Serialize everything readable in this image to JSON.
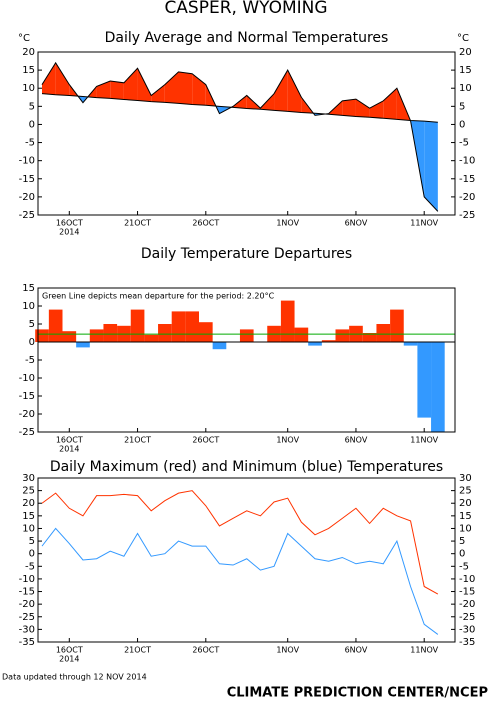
{
  "title": "CASPER, WYOMING",
  "footer_left": "Data updated through 12 NOV 2014",
  "footer_right": "CLIMATE PREDICTION CENTER/NCEP",
  "chart_data": [
    {
      "type": "area",
      "title": "Daily Average and Normal Temperatures",
      "y_label": "°C",
      "y2_label": "°C",
      "categories": [
        null,
        null,
        "16OCT",
        null,
        null,
        null,
        null,
        "21OCT",
        null,
        null,
        null,
        null,
        "26OCT",
        null,
        null,
        null,
        null,
        null,
        "1NOV",
        null,
        null,
        null,
        null,
        "6NOV",
        null,
        null,
        null,
        null,
        "11NOV",
        null
      ],
      "x_year_label": "2014",
      "series": [
        {
          "color": "#000000",
          "values": [
            11,
            17,
            11,
            6,
            10.5,
            12,
            11.5,
            15.5,
            8,
            11,
            14.5,
            14,
            11,
            3,
            5,
            8,
            4.5,
            8.5,
            15,
            7.5,
            2.5,
            3,
            6.5,
            7,
            4.5,
            6.5,
            10,
            1,
            -20,
            -24
          ]
        },
        {
          "color": "#000000",
          "values": [
            8.5,
            8.2,
            8,
            7.7,
            7.4,
            7.2,
            6.9,
            6.6,
            6.3,
            6.1,
            5.8,
            5.5,
            5.3,
            5,
            4.7,
            4.4,
            4.2,
            3.9,
            3.6,
            3.3,
            3.1,
            2.8,
            2.5,
            2.2,
            2,
            1.7,
            1.4,
            1.1,
            0.9,
            0.6
          ]
        }
      ],
      "fill_above": "#ff3300",
      "fill_below": "#3399ff",
      "ylim": [
        -25,
        20
      ],
      "yticks": [
        -25,
        -20,
        -15,
        -10,
        -5,
        0,
        5,
        10,
        15,
        20
      ],
      "right_axis": true
    },
    {
      "type": "bar",
      "title": "Daily Temperature Departures",
      "categories": [
        null,
        null,
        "16OCT",
        null,
        null,
        null,
        null,
        "21OCT",
        null,
        null,
        null,
        null,
        "26OCT",
        null,
        null,
        null,
        null,
        null,
        "1NOV",
        null,
        null,
        null,
        null,
        "6NOV",
        null,
        null,
        null,
        null,
        "11NOV",
        null
      ],
      "x_year_label": "2014",
      "values": [
        3.5,
        9,
        3,
        -1.5,
        3.5,
        5,
        4.5,
        9,
        2,
        5,
        8.5,
        8.5,
        5.5,
        -2,
        0,
        3.5,
        0,
        4.5,
        11.5,
        4,
        -1,
        0.5,
        3.5,
        4.5,
        2.5,
        5,
        9,
        -1,
        -21,
        -25
      ],
      "positive_color": "#ff3300",
      "negative_color": "#3399ff",
      "mean_line": 2.2,
      "mean_line_color": "#00aa00",
      "annotation": "Green Line depicts mean departure for the period: 2.20°C",
      "ylim": [
        -25,
        15
      ],
      "yticks": [
        -25,
        -20,
        -15,
        -10,
        -5,
        0,
        5,
        10,
        15
      ],
      "right_axis": false
    },
    {
      "type": "line",
      "title": "Daily Maximum (red) and Minimum (blue) Temperatures",
      "categories": [
        null,
        null,
        "16OCT",
        null,
        null,
        null,
        null,
        "21OCT",
        null,
        null,
        null,
        null,
        "26OCT",
        null,
        null,
        null,
        null,
        null,
        "1NOV",
        null,
        null,
        null,
        null,
        "6NOV",
        null,
        null,
        null,
        null,
        "11NOV",
        null
      ],
      "x_year_label": "2014",
      "series": [
        {
          "color": "#ff3300",
          "values": [
            20,
            24,
            18,
            15,
            23,
            23,
            23.5,
            23,
            17,
            21,
            24,
            25,
            19,
            11,
            14,
            17,
            15,
            20.5,
            22,
            12.5,
            7.5,
            10,
            14,
            18,
            12,
            18,
            15,
            13,
            -13,
            -16
          ]
        },
        {
          "color": "#3399ff",
          "values": [
            3,
            10,
            4,
            -2.5,
            -2,
            1,
            -1,
            8,
            -1,
            0,
            5,
            3,
            3,
            -4,
            -4.5,
            -2,
            -6.5,
            -5,
            8,
            3,
            -2,
            -3,
            -1.5,
            -4,
            -3,
            -4,
            5,
            -13,
            -28,
            -32
          ]
        }
      ],
      "ylim": [
        -35,
        30
      ],
      "yticks": [
        -35,
        -30,
        -25,
        -20,
        -15,
        -10,
        -5,
        0,
        5,
        10,
        15,
        20,
        25,
        30
      ],
      "right_axis": true
    }
  ]
}
